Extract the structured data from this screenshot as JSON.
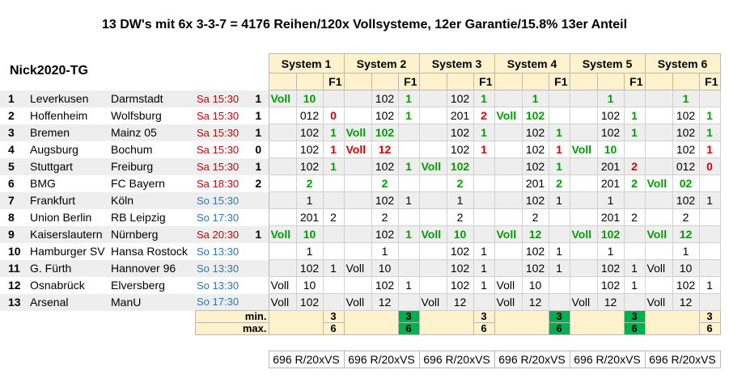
{
  "title": "13 DW's mit 6x 3-3-7 =  4176 Reihen/120x Vollsysteme, 12er Garantie/15.8% 13er Anteil",
  "brand": "Nick2020-TG",
  "systems": [
    "System 1",
    "System 2",
    "System 3",
    "System 4",
    "System 5",
    "System 6"
  ],
  "f1_label": "F1",
  "rows": [
    {
      "n": "1",
      "home": "Leverkusen",
      "away": "Darmstadt",
      "time": "Sa 15:30",
      "res": "1",
      "s": [
        [
          "Voll",
          "10",
          ""
        ],
        [
          "",
          "102",
          "1"
        ],
        [
          "",
          "102",
          "1"
        ],
        [
          "",
          "1",
          ""
        ],
        [
          "",
          "1",
          ""
        ],
        [
          "",
          "1",
          ""
        ]
      ]
    },
    {
      "n": "2",
      "home": "Hoffenheim",
      "away": "Wolfsburg",
      "time": "Sa 15:30",
      "res": "1",
      "s": [
        [
          "",
          "012",
          "0"
        ],
        [
          "",
          "102",
          "1"
        ],
        [
          "",
          "201",
          "2"
        ],
        [
          "Voll",
          "102",
          ""
        ],
        [
          "",
          "102",
          "1"
        ],
        [
          "",
          "102",
          "1"
        ]
      ]
    },
    {
      "n": "3",
      "home": "Bremen",
      "away": "Mainz 05",
      "time": "Sa 15:30",
      "res": "1",
      "s": [
        [
          "",
          "102",
          "1"
        ],
        [
          "Voll",
          "102",
          ""
        ],
        [
          "",
          "102",
          "1"
        ],
        [
          "",
          "102",
          "1"
        ],
        [
          "",
          "102",
          "1"
        ],
        [
          "",
          "102",
          "1"
        ]
      ]
    },
    {
      "n": "4",
      "home": "Augsburg",
      "away": "Bochum",
      "time": "Sa 15:30",
      "res": "0",
      "s": [
        [
          "",
          "102",
          "1"
        ],
        [
          "Voll",
          "12",
          ""
        ],
        [
          "",
          "102",
          "1"
        ],
        [
          "",
          "102",
          "1"
        ],
        [
          "Voll",
          "10",
          ""
        ],
        [
          "",
          "102",
          "1"
        ]
      ]
    },
    {
      "n": "5",
      "home": "Stuttgart",
      "away": "Freiburg",
      "time": "Sa 15:30",
      "res": "1",
      "s": [
        [
          "",
          "102",
          "1"
        ],
        [
          "",
          "102",
          "1"
        ],
        [
          "Voll",
          "102",
          ""
        ],
        [
          "",
          "102",
          "1"
        ],
        [
          "",
          "201",
          "2"
        ],
        [
          "",
          "012",
          "0"
        ]
      ]
    },
    {
      "n": "6",
      "home": "BMG",
      "away": "FC Bayern",
      "time": "Sa 18:30",
      "res": "2",
      "s": [
        [
          "",
          "2",
          ""
        ],
        [
          "",
          "2",
          ""
        ],
        [
          "",
          "2",
          ""
        ],
        [
          "",
          "201",
          "2"
        ],
        [
          "",
          "201",
          "2"
        ],
        [
          "Voll",
          "02",
          ""
        ]
      ]
    },
    {
      "n": "7",
      "home": "Frankfurt",
      "away": "Köln",
      "time": "So 15:30",
      "res": "",
      "s": [
        [
          "",
          "1",
          ""
        ],
        [
          "",
          "102",
          "1"
        ],
        [
          "",
          "1",
          ""
        ],
        [
          "",
          "102",
          "1"
        ],
        [
          "",
          "1",
          ""
        ],
        [
          "",
          "102",
          "1"
        ]
      ]
    },
    {
      "n": "8",
      "home": "Union Berlin",
      "away": "RB Leipzig",
      "time": "So 17:30",
      "res": "",
      "s": [
        [
          "",
          "201",
          "2"
        ],
        [
          "",
          "2",
          ""
        ],
        [
          "",
          "2",
          ""
        ],
        [
          "",
          "2",
          ""
        ],
        [
          "",
          "201",
          "2"
        ],
        [
          "",
          "2",
          ""
        ]
      ]
    },
    {
      "n": "9",
      "home": "Kaiserslautern",
      "away": "Nürnberg",
      "time": "Sa 20:30",
      "res": "1",
      "s": [
        [
          "Voll",
          "10",
          ""
        ],
        [
          "",
          "102",
          "1"
        ],
        [
          "Voll",
          "10",
          ""
        ],
        [
          "Voll",
          "12",
          ""
        ],
        [
          "Voll",
          "102",
          ""
        ],
        [
          "Voll",
          "12",
          ""
        ]
      ]
    },
    {
      "n": "10",
      "home": "Hamburger SV",
      "away": "Hansa Rostock",
      "time": "So 13:30",
      "res": "",
      "s": [
        [
          "",
          "1",
          ""
        ],
        [
          "",
          "1",
          ""
        ],
        [
          "",
          "102",
          "1"
        ],
        [
          "",
          "102",
          "1"
        ],
        [
          "",
          "1",
          ""
        ],
        [
          "",
          "1",
          ""
        ]
      ]
    },
    {
      "n": "11",
      "home": "G. Fürth",
      "away": "Hannover 96",
      "time": "So 13:30",
      "res": "",
      "s": [
        [
          "",
          "102",
          "1"
        ],
        [
          "Voll",
          "10",
          ""
        ],
        [
          "",
          "102",
          "1"
        ],
        [
          "",
          "102",
          "1"
        ],
        [
          "",
          "102",
          "1"
        ],
        [
          "Voll",
          "10",
          ""
        ]
      ]
    },
    {
      "n": "12",
      "home": "Osnabrück",
      "away": "Elversberg",
      "time": "So 13:30",
      "res": "",
      "s": [
        [
          "Voll",
          "10",
          ""
        ],
        [
          "",
          "102",
          "1"
        ],
        [
          "",
          "102",
          "1"
        ],
        [
          "Voll",
          "10",
          ""
        ],
        [
          "",
          "102",
          "1"
        ],
        [
          "",
          "102",
          "1"
        ]
      ]
    },
    {
      "n": "13",
      "home": "Arsenal",
      "away": "ManU",
      "time": "So 17:30",
      "res": "",
      "s": [
        [
          "Voll",
          "102",
          ""
        ],
        [
          "Voll",
          "12",
          ""
        ],
        [
          "Voll",
          "12",
          ""
        ],
        [
          "Voll",
          "12",
          ""
        ],
        [
          "Voll",
          "12",
          ""
        ],
        [
          "Voll",
          "12",
          ""
        ]
      ]
    }
  ],
  "min_label": "min.",
  "max_label": "max.",
  "min_values": [
    "3",
    "3",
    "3",
    "3",
    "3",
    "3"
  ],
  "max_values": [
    "6",
    "6",
    "6",
    "6",
    "6",
    "6"
  ],
  "min_highlight": [
    false,
    true,
    false,
    true,
    true,
    false
  ],
  "footer": [
    "696 R/20xVS",
    "696 R/20xVS",
    "696 R/20xVS",
    "696 R/20xVS",
    "696 R/20xVS",
    "696 R/20xVS"
  ]
}
